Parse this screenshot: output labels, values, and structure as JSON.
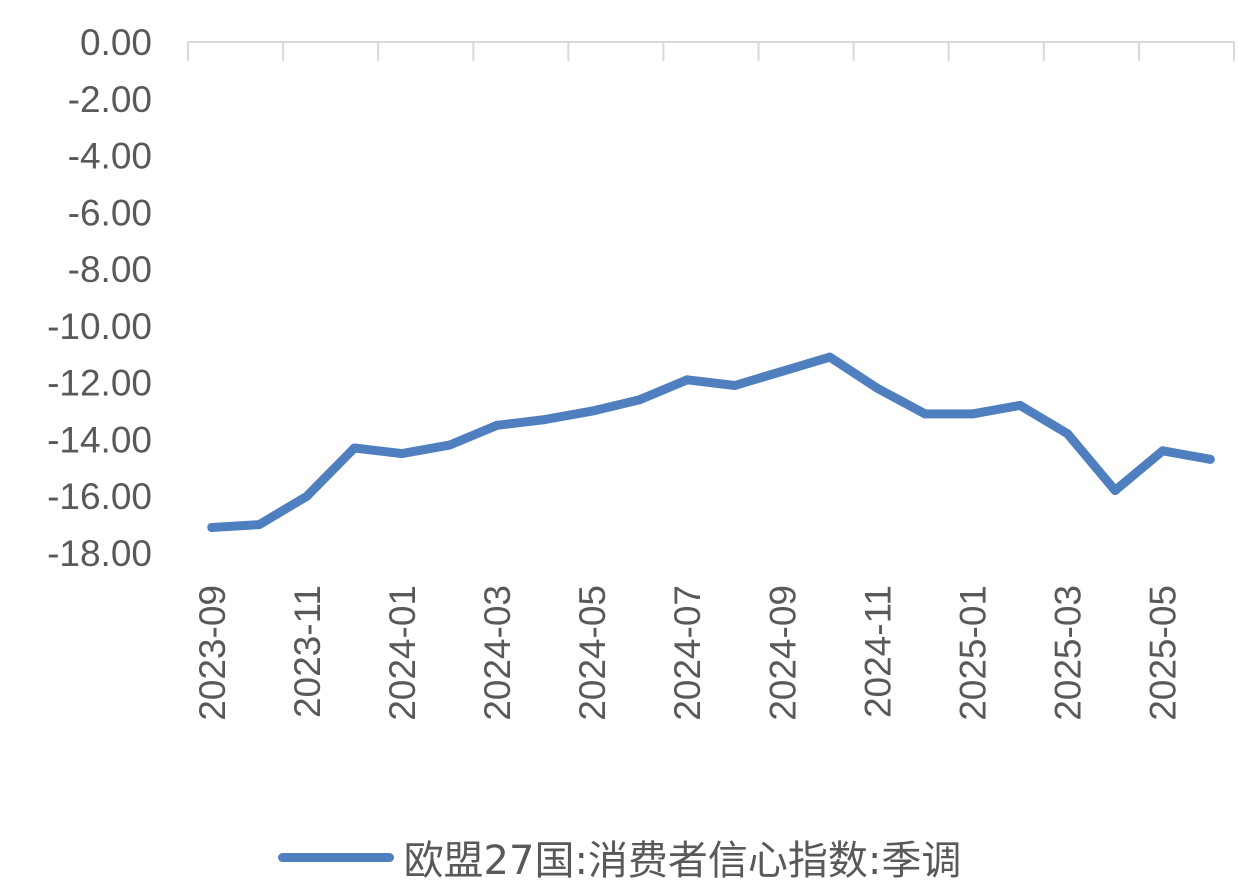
{
  "chart_data": {
    "type": "line",
    "title": "",
    "xlabel": "",
    "ylabel": "",
    "ylim": [
      -18,
      0
    ],
    "y_ticks": [
      "0.00",
      "-2.00",
      "-4.00",
      "-6.00",
      "-8.00",
      "-10.00",
      "-12.00",
      "-14.00",
      "-16.00",
      "-18.00"
    ],
    "x_tick_labels": [
      "2023-09",
      "2023-11",
      "2024-01",
      "2024-03",
      "2024-05",
      "2024-07",
      "2024-09",
      "2024-11",
      "2025-01",
      "2025-03",
      "2025-05"
    ],
    "categories": [
      "2023-09",
      "2023-10",
      "2023-11",
      "2023-12",
      "2024-01",
      "2024-02",
      "2024-03",
      "2024-04",
      "2024-05",
      "2024-06",
      "2024-07",
      "2024-08",
      "2024-09",
      "2024-10",
      "2024-11",
      "2024-12",
      "2025-01",
      "2025-02",
      "2025-03",
      "2025-04",
      "2025-05",
      "2025-06"
    ],
    "series": [
      {
        "name": "欧盟27国:消费者信心指数:季调",
        "color": "#4f7fbf",
        "values": [
          -17.1,
          -17.0,
          -16.0,
          -14.3,
          -14.5,
          -14.2,
          -13.5,
          -13.3,
          -13.0,
          -12.6,
          -11.9,
          -12.1,
          -11.6,
          -11.1,
          -12.2,
          -13.1,
          -13.1,
          -12.8,
          -13.8,
          -15.8,
          -14.4,
          -14.7
        ]
      }
    ],
    "grid": false,
    "legend_position": "bottom"
  }
}
